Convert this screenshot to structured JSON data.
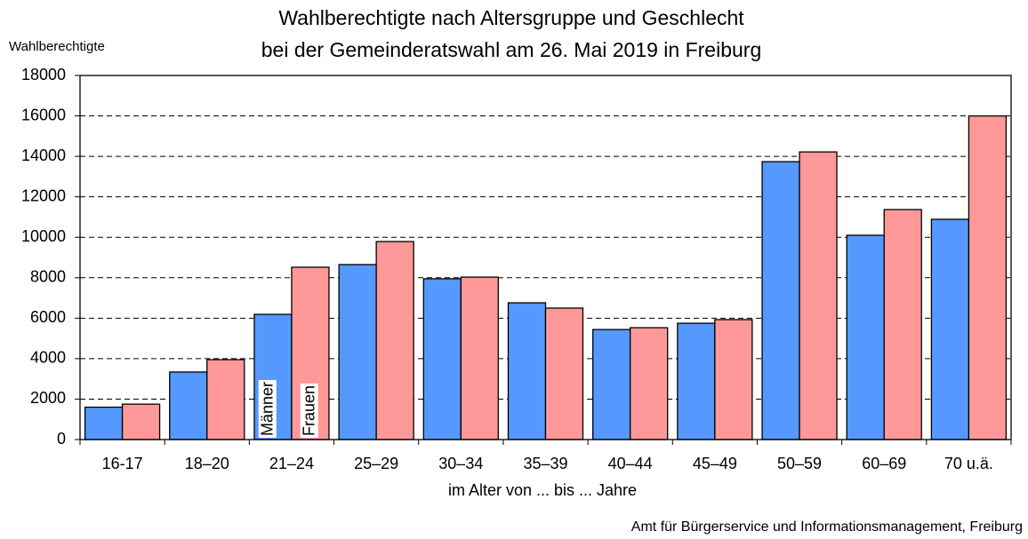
{
  "chart_data": {
    "type": "bar",
    "title": [
      "Wahlberechtigte  nach Altersgruppe und Geschlecht",
      "bei der Gemeinderatswahl am 26. Mai 2019 in Freiburg"
    ],
    "y_label": "Wahlberechtigte",
    "x_label": "im Alter von ... bis ... Jahre",
    "source": "Amt für Bürgerservice und Informationsmanagement, Freiburg",
    "categories": [
      "16-17",
      "18–20",
      "21–24",
      "25–29",
      "30–34",
      "35–39",
      "40–44",
      "45–49",
      "50–59",
      "60–69",
      "70 u.ä."
    ],
    "series": [
      {
        "name": "Männer",
        "color": "#5599ff",
        "values": [
          1600,
          3340,
          6190,
          8650,
          7950,
          6760,
          5440,
          5750,
          13740,
          10100,
          10890
        ]
      },
      {
        "name": "Frauen",
        "color": "#ff9999",
        "values": [
          1750,
          3950,
          8520,
          9790,
          8030,
          6500,
          5530,
          5930,
          14220,
          11370,
          16000
        ]
      }
    ],
    "ylim": [
      0,
      18000
    ],
    "yticks": [
      0,
      2000,
      4000,
      6000,
      8000,
      10000,
      12000,
      14000,
      16000,
      18000
    ],
    "grid": true
  }
}
